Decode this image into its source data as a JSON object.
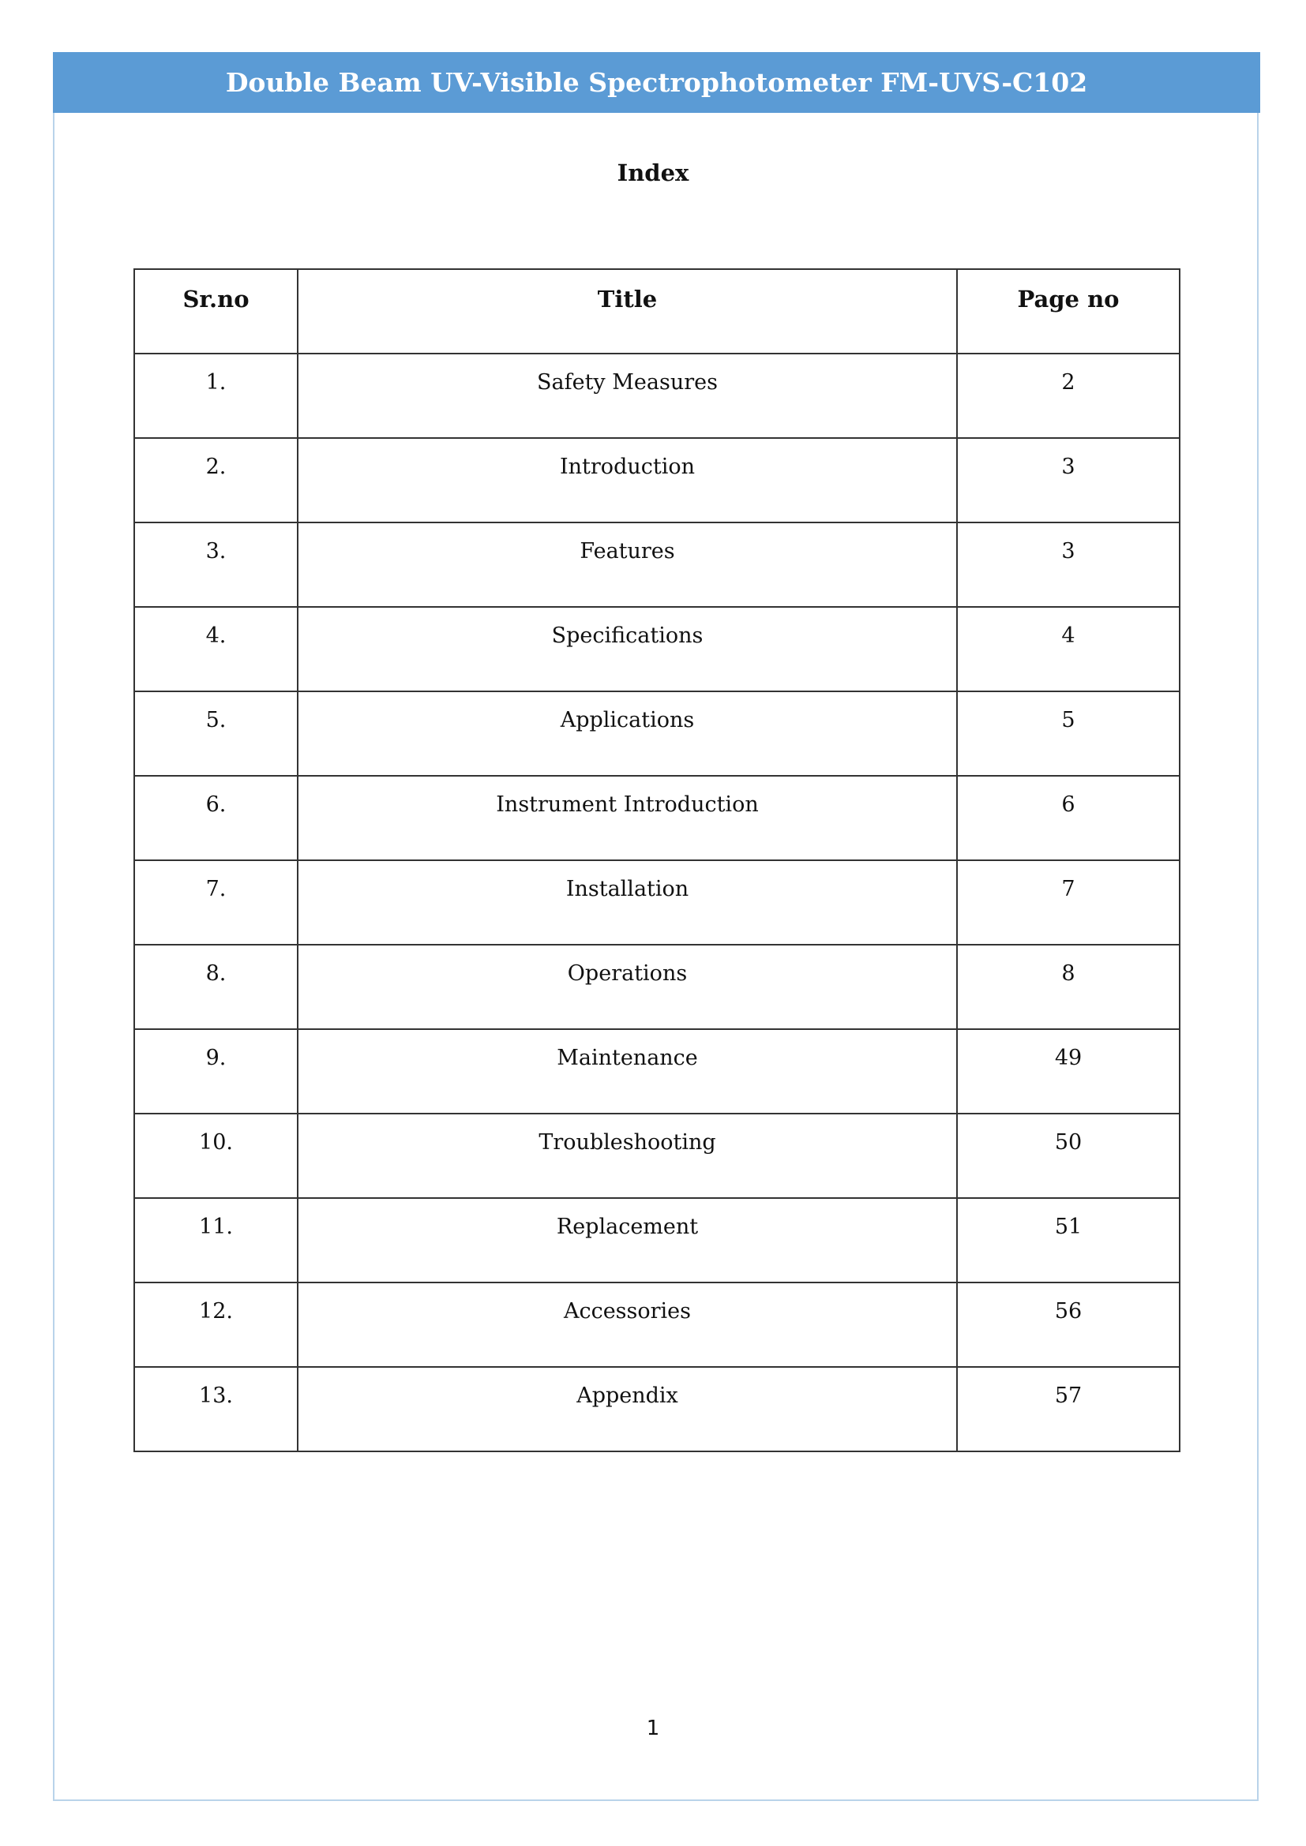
{
  "header": {
    "title": "Double Beam UV-Visible Spectrophotometer FM-UVS-C102",
    "color": "#5b9bd5"
  },
  "index": {
    "heading": "Index",
    "columns": [
      "Sr.no",
      "Title",
      "Page no"
    ],
    "rows": [
      {
        "sr": "1.",
        "title": "Safety Measures",
        "page": "2"
      },
      {
        "sr": "2.",
        "title": "Introduction",
        "page": "3"
      },
      {
        "sr": "3.",
        "title": "Features",
        "page": "3"
      },
      {
        "sr": "4.",
        "title": "Specifications",
        "page": "4"
      },
      {
        "sr": "5.",
        "title": "Applications",
        "page": "5"
      },
      {
        "sr": "6.",
        "title": "Instrument Introduction",
        "page": "6"
      },
      {
        "sr": "7.",
        "title": "Installation",
        "page": "7"
      },
      {
        "sr": "8.",
        "title": "Operations",
        "page": "8"
      },
      {
        "sr": "9.",
        "title": "Maintenance",
        "page": "49"
      },
      {
        "sr": "10.",
        "title": "Troubleshooting",
        "page": "50"
      },
      {
        "sr": "11.",
        "title": "Replacement",
        "page": "51"
      },
      {
        "sr": "12.",
        "title": "Accessories",
        "page": "56"
      },
      {
        "sr": "13.",
        "title": "Appendix",
        "page": "57"
      }
    ]
  },
  "footer": {
    "page_number": "1"
  }
}
